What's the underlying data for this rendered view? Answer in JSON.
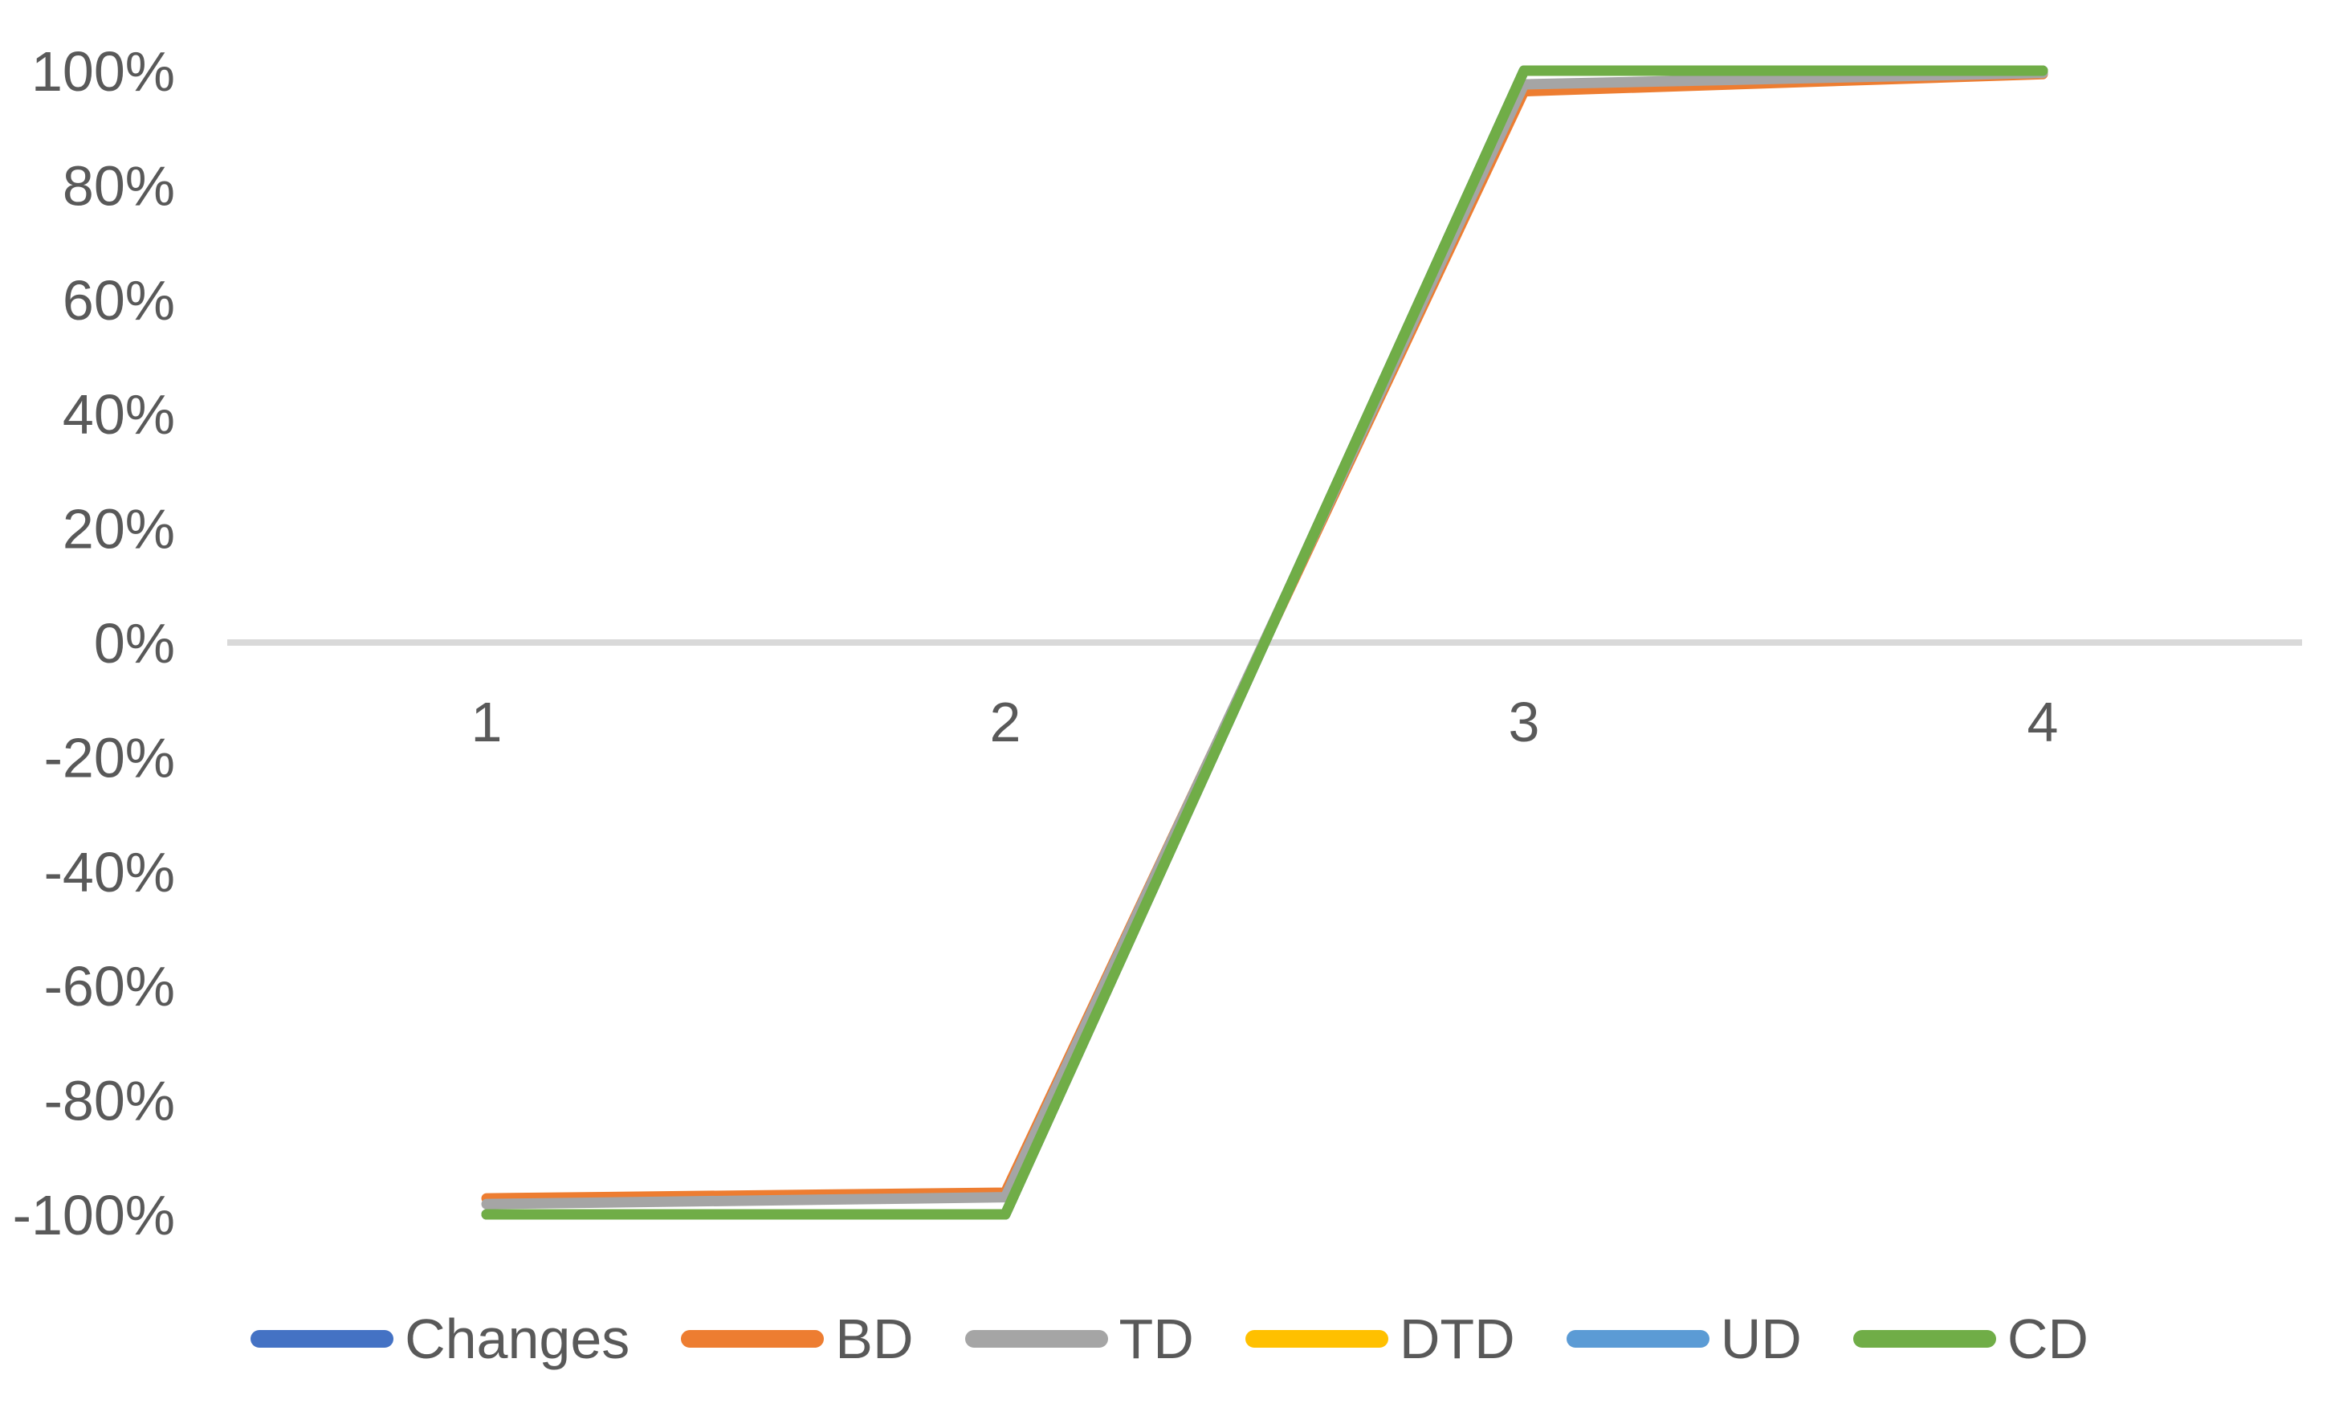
{
  "chart_data": {
    "type": "line",
    "title": "",
    "xlabel": "",
    "ylabel": "",
    "categories": [
      "1",
      "2",
      "3",
      "4"
    ],
    "x_tick_labels": [
      "1",
      "2",
      "3",
      "4"
    ],
    "y_tick_labels": [
      "100%",
      "80%",
      "60%",
      "40%",
      "20%",
      "0%",
      "-20%",
      "-40%",
      "-60%",
      "-80%",
      "-100%"
    ],
    "ylim": [
      -100,
      100
    ],
    "y_tick_step": 20,
    "y_unit": "percent",
    "grid": "zero-line-only",
    "legend_position": "bottom",
    "series": [
      {
        "name": "Changes",
        "color": "#4472C4",
        "values": [
          -100,
          -100,
          100,
          100
        ]
      },
      {
        "name": "BD",
        "color": "#ED7D31",
        "values": [
          -97.2,
          -96.2,
          96.4,
          99.4
        ]
      },
      {
        "name": "TD",
        "color": "#A5A5A5",
        "values": [
          -98.2,
          -97.0,
          97.6,
          99.6
        ]
      },
      {
        "name": "DTD",
        "color": "#FFC000",
        "values": [
          -100,
          -100,
          100,
          100
        ]
      },
      {
        "name": "UD",
        "color": "#5B9BD5",
        "values": [
          -100,
          -100,
          100,
          100
        ]
      },
      {
        "name": "CD",
        "color": "#70AD47",
        "values": [
          -100,
          -100,
          100,
          100
        ]
      }
    ],
    "colors": {
      "axis_line": "#D9D9D9",
      "tick_label": "#595959"
    }
  }
}
